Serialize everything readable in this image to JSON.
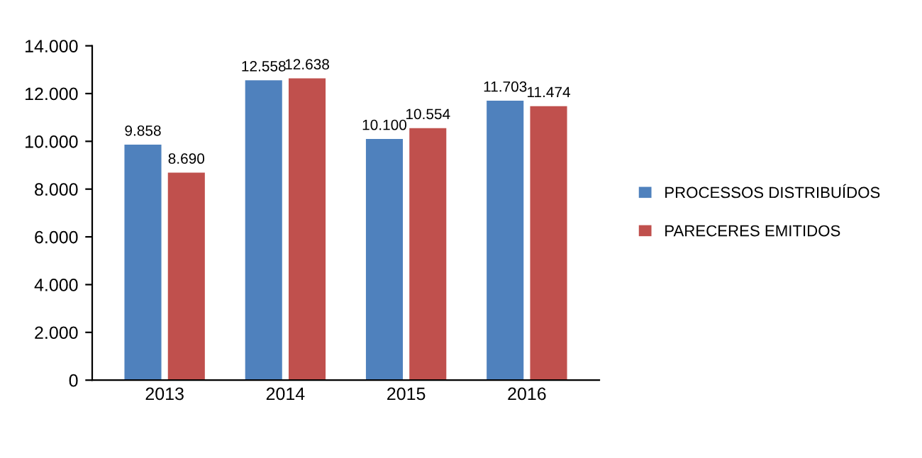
{
  "chart_data": {
    "type": "bar",
    "categories": [
      "2013",
      "2014",
      "2015",
      "2016"
    ],
    "series": [
      {
        "name": "PROCESSOS DISTRIBUÍDOS",
        "color": "#4f81bd",
        "values": [
          9858,
          12558,
          10100,
          11703
        ],
        "value_labels": [
          "9.858",
          "12.558",
          "10.100",
          "11.703"
        ]
      },
      {
        "name": "PARECERES EMITIDOS",
        "color": "#c0504d",
        "values": [
          8690,
          12638,
          10554,
          11474
        ],
        "value_labels": [
          "8.690",
          "12.638",
          "10.554",
          "11.474"
        ]
      }
    ],
    "ylim": [
      0,
      14000
    ],
    "yticks": [
      0,
      {
        "value": 2000,
        "label": "2.000"
      },
      {
        "value": 4000,
        "label": "4.000"
      },
      {
        "value": 6000,
        "label": "6.000"
      },
      {
        "value": 8000,
        "label": "8.000"
      },
      {
        "value": 10000,
        "label": "10.000"
      },
      {
        "value": 12000,
        "label": "12.000"
      },
      {
        "value": 14000,
        "label": "14.000"
      }
    ],
    "legend": "right",
    "grid": false
  }
}
